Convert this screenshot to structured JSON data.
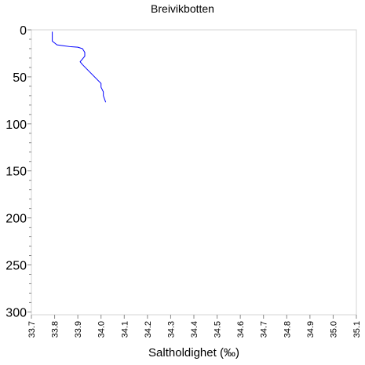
{
  "chart_data": {
    "type": "line",
    "title": "Breivikbotten",
    "xlabel": "Saltholdighet (‰)",
    "ylabel": "",
    "xlim": [
      33.7,
      35.1
    ],
    "ylim": [
      0,
      303
    ],
    "y_inverted": true,
    "grid": false,
    "x_ticks": [
      "33.7",
      "33.8",
      "33.9",
      "34.0",
      "34.1",
      "34.2",
      "34.3",
      "34.4",
      "34.5",
      "34.6",
      "34.7",
      "34.8",
      "34.9",
      "35.0",
      "35.1"
    ],
    "y_ticks": [
      "0",
      "50",
      "100",
      "150",
      "200",
      "250",
      "300"
    ],
    "series": [
      {
        "color": "#0000ff",
        "x": [
          33.79,
          33.79,
          33.79,
          33.8,
          33.81,
          33.84,
          33.87,
          33.9,
          33.92,
          33.93,
          33.93,
          33.92,
          33.91,
          33.92,
          33.94,
          33.96,
          33.98,
          34.0,
          34.0,
          34.01,
          34.01,
          34.02
        ],
        "y": [
          2,
          8,
          12,
          14,
          16,
          17,
          18,
          18.5,
          20,
          24,
          28,
          31,
          34,
          37,
          42,
          47,
          52,
          57,
          61,
          66,
          70,
          77
        ]
      }
    ]
  }
}
